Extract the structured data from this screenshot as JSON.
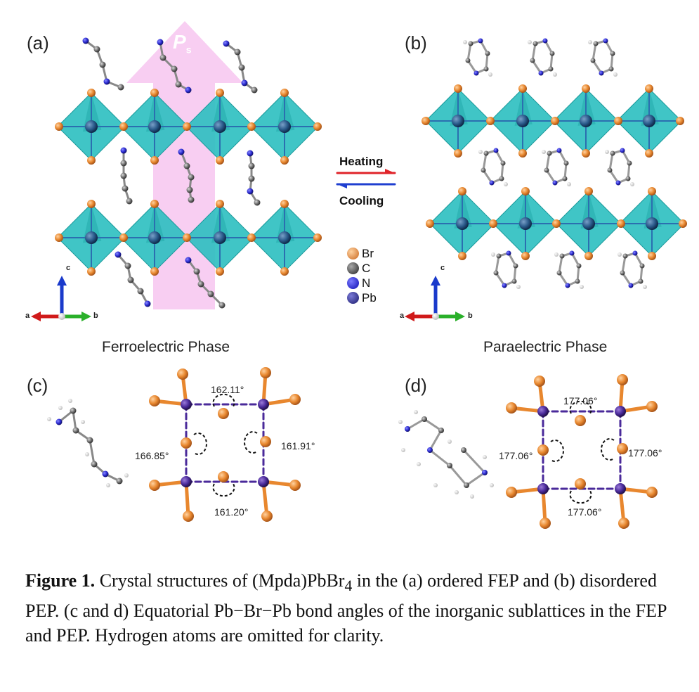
{
  "panels": {
    "a": "(a)",
    "b": "(b)",
    "c": "(c)",
    "d": "(d)"
  },
  "polarization_label": "P",
  "polarization_sub": "s",
  "transition": {
    "heating": "Heating",
    "cooling": "Cooling",
    "heating_color": "#e0242a",
    "cooling_color": "#1f3fd0"
  },
  "legend": [
    {
      "symbol": "Br",
      "color": "#e8872e"
    },
    {
      "symbol": "C",
      "color": "#444444"
    },
    {
      "symbol": "N",
      "color": "#1a1ad0"
    },
    {
      "symbol": "Pb",
      "color": "#2b2b9a"
    }
  ],
  "axes": {
    "a": "a",
    "b": "b",
    "c": "c"
  },
  "phases": {
    "ferro": "Ferroelectric Phase",
    "para": "Paraelectric Phase"
  },
  "angles_c": {
    "top": "162.11°",
    "left": "166.85°",
    "right": "161.91°",
    "bottom": "161.20°"
  },
  "angles_d": {
    "top": "177.06°",
    "left": "177.06°",
    "right": "177.06°",
    "bottom": "177.06°"
  },
  "caption": {
    "label": "Figure 1.",
    "text_1": " Crystal structures of (Mpda)PbBr",
    "sub_4": "4",
    "text_2": " in the (a) ordered FEP and (b) disordered PEP. (c and d) Equatorial Pb−Br−Pb bond angles of the inorganic sublattices in the FEP and PEP. Hydrogen atoms are omitted for clarity."
  },
  "colors": {
    "octahedron": "#2bbfc0",
    "octahedron_dark": "#1a9a9b",
    "arrow_pink": "#f7c6f0",
    "br": "#e8872e",
    "pb": "#4a2a9a",
    "carbon": "#7a7a7a",
    "nitrogen": "#2a2ad0"
  }
}
